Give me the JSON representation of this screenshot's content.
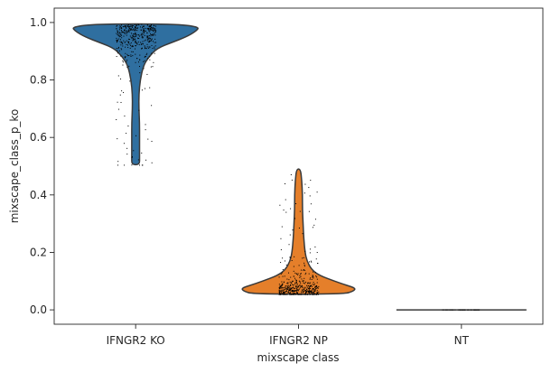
{
  "chart_data": {
    "type": "violin",
    "xlabel": "mixscape class",
    "ylabel": "mixscape_class_p_ko",
    "ylim": [
      -0.05,
      1.05
    ],
    "yticks": [
      0.0,
      0.2,
      0.4,
      0.6,
      0.8,
      1.0
    ],
    "ytick_labels": [
      "0.0",
      "0.2",
      "0.4",
      "0.6",
      "0.8",
      "1.0"
    ],
    "categories": [
      "IFNGR2 KO",
      "IFNGR2 NP",
      "NT"
    ],
    "grid": false,
    "legend": "none",
    "show_points": true,
    "violins": [
      {
        "name": "IFNGR2 KO",
        "color": "#2f6fa0",
        "min": 0.505,
        "max": 0.995,
        "density_profile": [
          [
            0.995,
            0.59
          ],
          [
            0.985,
            0.98
          ],
          [
            0.97,
            0.93
          ],
          [
            0.95,
            0.78
          ],
          [
            0.93,
            0.55
          ],
          [
            0.91,
            0.33
          ],
          [
            0.88,
            0.2
          ],
          [
            0.85,
            0.12
          ],
          [
            0.8,
            0.07
          ],
          [
            0.75,
            0.05
          ],
          [
            0.7,
            0.05
          ],
          [
            0.65,
            0.06
          ],
          [
            0.6,
            0.06
          ],
          [
            0.56,
            0.06
          ],
          [
            0.53,
            0.06
          ],
          [
            0.505,
            0.06
          ]
        ],
        "point_count": 420
      },
      {
        "name": "IFNGR2 NP",
        "color": "#e57f2a",
        "min": 0.055,
        "max": 0.49,
        "density_profile": [
          [
            0.49,
            0.03
          ],
          [
            0.45,
            0.05
          ],
          [
            0.4,
            0.06
          ],
          [
            0.35,
            0.06
          ],
          [
            0.3,
            0.07
          ],
          [
            0.25,
            0.08
          ],
          [
            0.2,
            0.1
          ],
          [
            0.17,
            0.13
          ],
          [
            0.14,
            0.2
          ],
          [
            0.12,
            0.32
          ],
          [
            0.1,
            0.55
          ],
          [
            0.085,
            0.75
          ],
          [
            0.075,
            0.88
          ],
          [
            0.065,
            0.84
          ],
          [
            0.055,
            0.7
          ]
        ],
        "point_count": 480
      },
      {
        "name": "NT",
        "color": "#3ba33b",
        "min": 0.0,
        "max": 0.0,
        "density_profile": [],
        "point_count": 60
      }
    ]
  }
}
